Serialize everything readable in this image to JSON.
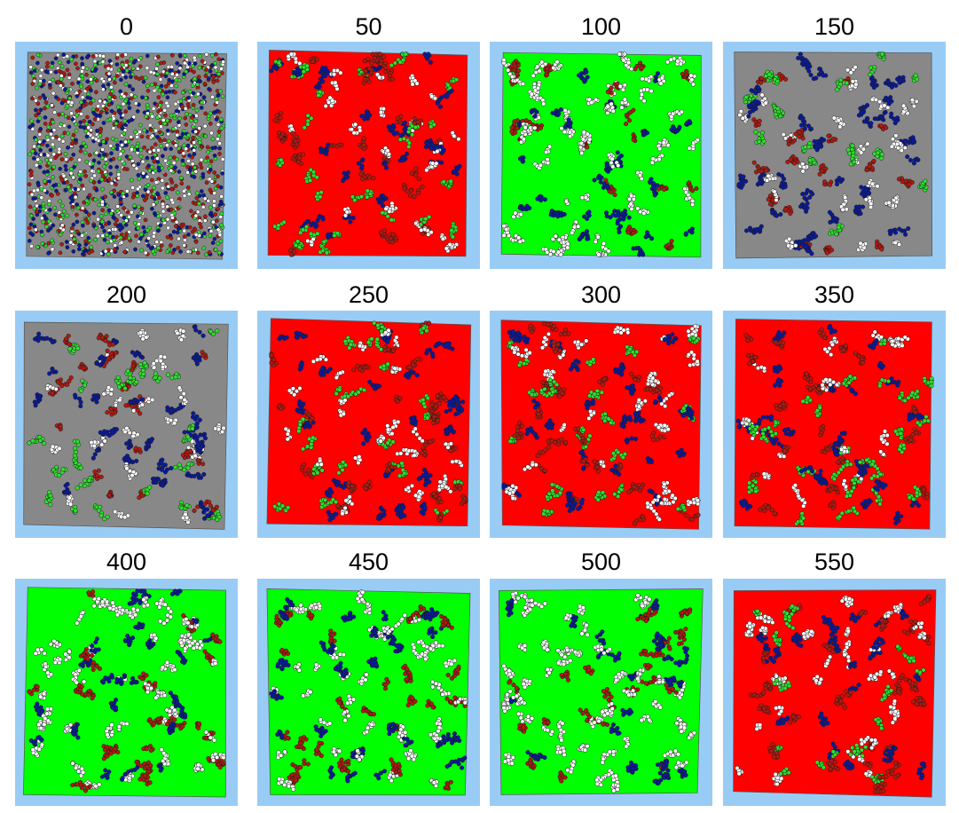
{
  "colors": {
    "frame": "#99ccf5",
    "gray": "#888888",
    "red": "#ff0000",
    "green": "#00ff00",
    "dot_red": "#b01a10",
    "dot_blue": "#0a1a9a",
    "dot_green": "#2ee02e",
    "dot_white": "#ffffff"
  },
  "panels": [
    {
      "label": "0",
      "background": "gray"
    },
    {
      "label": "50",
      "background": "red"
    },
    {
      "label": "100",
      "background": "green"
    },
    {
      "label": "150",
      "background": "gray"
    },
    {
      "label": "200",
      "background": "gray"
    },
    {
      "label": "250",
      "background": "red"
    },
    {
      "label": "300",
      "background": "red"
    },
    {
      "label": "350",
      "background": "red"
    },
    {
      "label": "400",
      "background": "green"
    },
    {
      "label": "450",
      "background": "green"
    },
    {
      "label": "500",
      "background": "green"
    },
    {
      "label": "550",
      "background": "red"
    }
  ]
}
